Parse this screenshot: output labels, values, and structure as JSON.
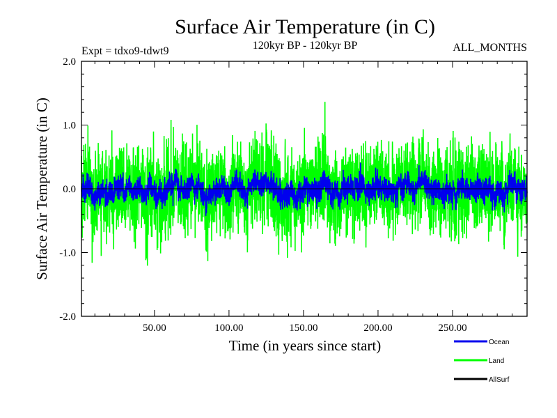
{
  "chart_data": {
    "type": "line",
    "title": "Surface Air Temperature (in C)",
    "subtitle_left": "Expt = tdxo9-tdwt9",
    "subtitle_center": "120kyr BP - 120kyr BP",
    "subtitle_right": "ALL_MONTHS",
    "xlabel": "Time (in years since start)",
    "ylabel": "Surface Air Temperature (in C)",
    "xlim": [
      1,
      300
    ],
    "ylim": [
      -2.0,
      2.0
    ],
    "x_ticks": [
      50,
      100,
      150,
      200,
      250
    ],
    "x_tick_labels": [
      "50.00",
      "100.00",
      "150.00",
      "200.00",
      "250.00"
    ],
    "y_ticks": [
      -2.0,
      -1.0,
      0.0,
      1.0,
      2.0
    ],
    "y_tick_labels": [
      "-2.0",
      "-1.0",
      "0.0",
      "1.0",
      "2.0"
    ],
    "zero_line": true,
    "grid": false,
    "legend_position": "bottom-right, below plot",
    "series": [
      {
        "name": "Ocean",
        "color": "#0000ee",
        "amplitude": 0.15,
        "range": [
          -0.45,
          0.5
        ]
      },
      {
        "name": "Land",
        "color": "#00ff00",
        "amplitude": 0.45,
        "range": [
          -1.63,
          1.75
        ]
      },
      {
        "name": "AllSurf",
        "color": "#000000",
        "amplitude": 0.15,
        "range": [
          -0.45,
          0.5
        ]
      }
    ]
  }
}
